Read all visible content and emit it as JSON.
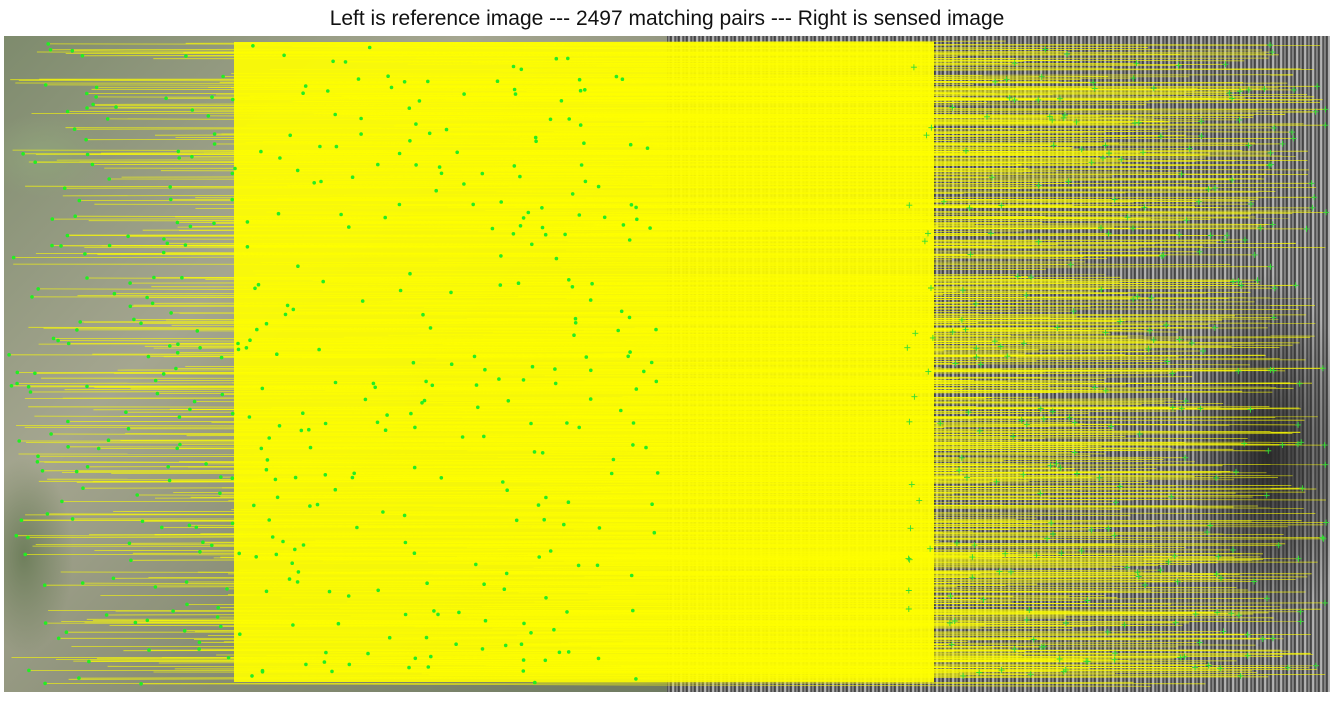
{
  "title": "Left is reference image --- 2497 matching pairs --- Right is sensed image",
  "matches": {
    "pair_count": 2497,
    "line_color": "#ffff00",
    "point_color": "#22ee22",
    "marker_color": "#33dd33"
  },
  "panels": {
    "reference": "optical-aerial-image",
    "sensed": "sar-grayscale-image"
  }
}
